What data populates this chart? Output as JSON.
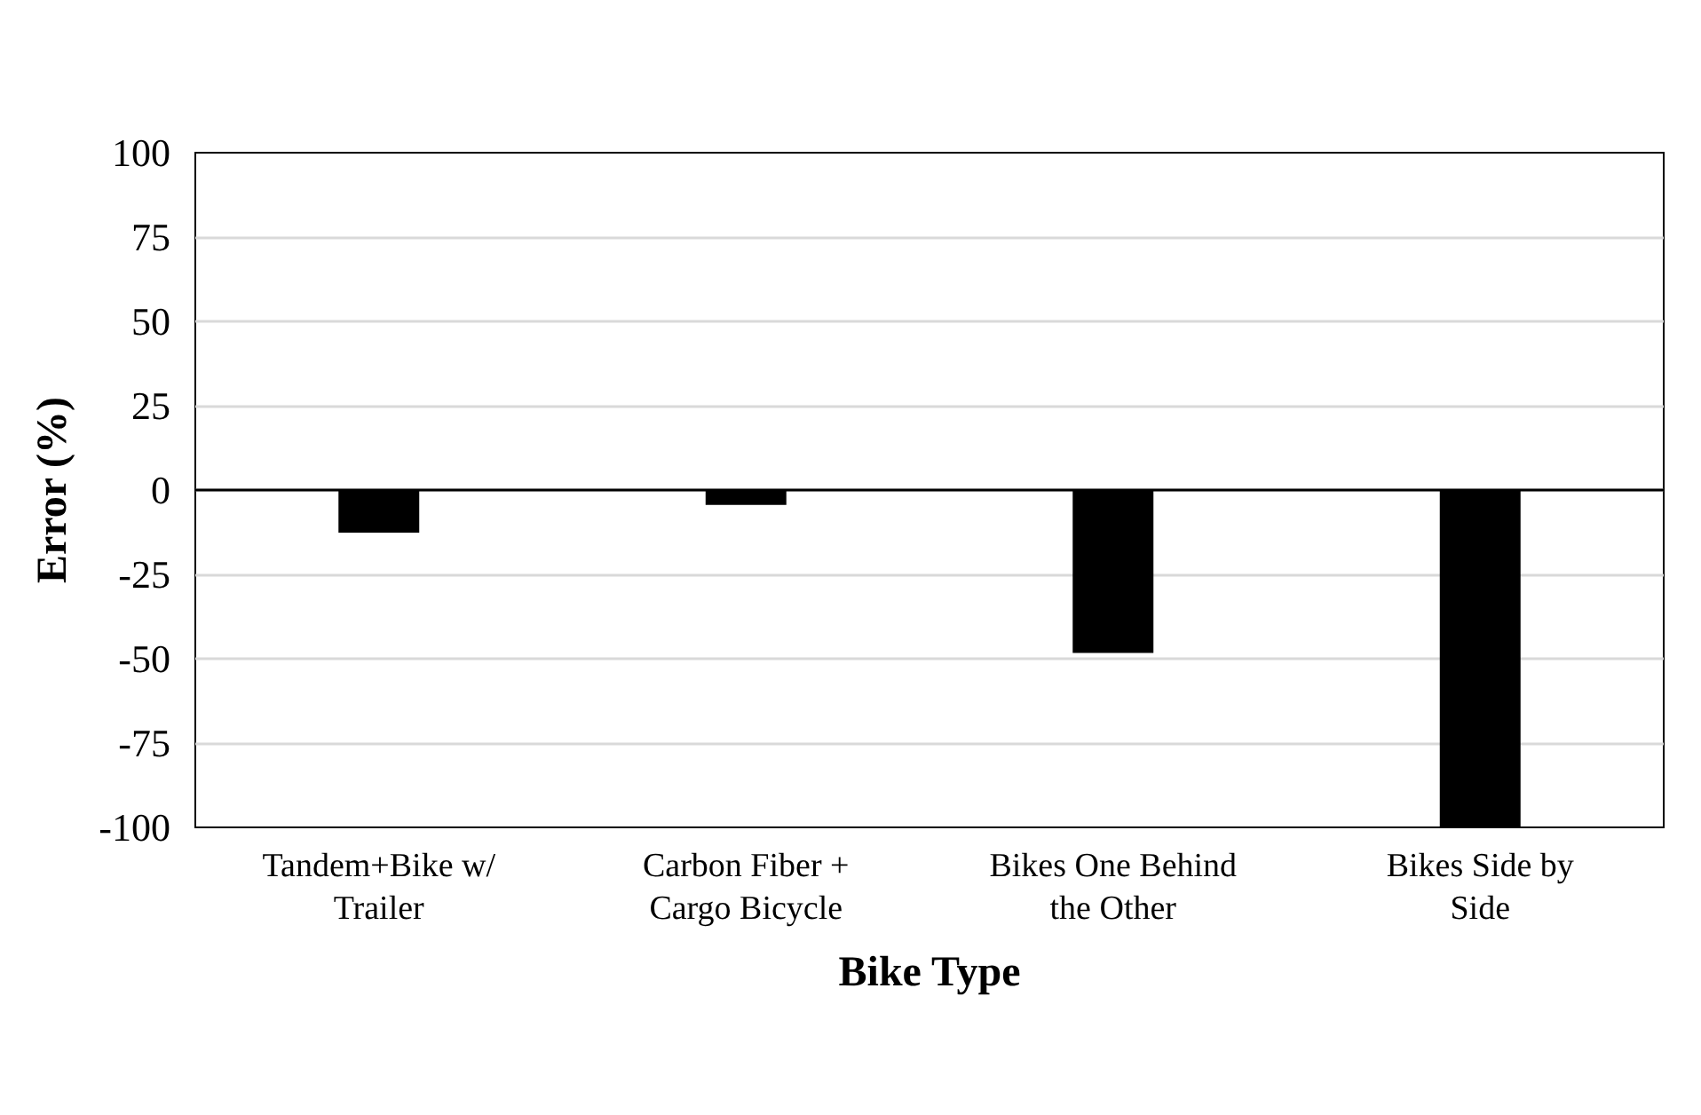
{
  "chart_data": {
    "type": "bar",
    "xlabel": "Bike Type",
    "ylabel": "Error (%)",
    "categories": [
      "Tandem+Bike w/\nTrailer",
      "Carbon Fiber +\nCargo Bicycle",
      "Bikes One Behind\nthe Other",
      "Bikes Side by\nSide"
    ],
    "values": [
      -12.6,
      -4.4,
      -48.3,
      -100
    ],
    "color": "#000000",
    "ylim": [
      -100,
      100
    ],
    "yticks": [
      -100,
      -75,
      -50,
      -25,
      0,
      25,
      50,
      75,
      100
    ],
    "grid": "y"
  }
}
